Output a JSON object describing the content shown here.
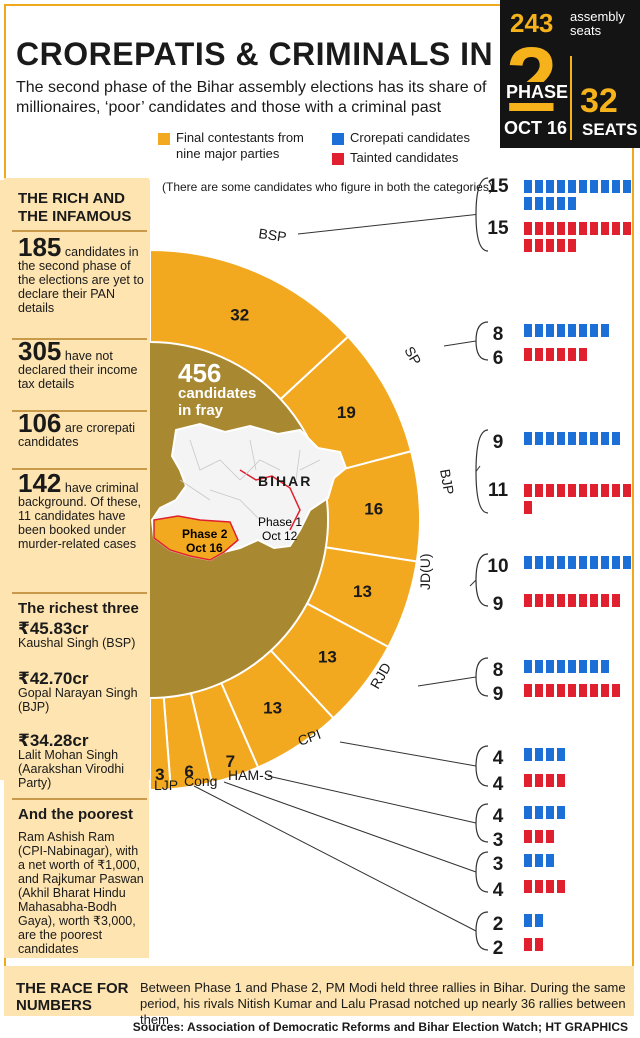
{
  "title": "CROREPATIS & CRIMINALS IN FRAY",
  "intro": "The second phase of the Bihar assembly elections has its share of millionaires, ‘poor’ candidates and those with a criminal past",
  "phase_box": {
    "total_seats": "243",
    "total_seats_label": "assembly seats",
    "phase_number": "2",
    "phase_word": "PHASE",
    "phase_date": "OCT 16",
    "phase_seats": "32",
    "phase_seats_label": "SEATS"
  },
  "legend": {
    "contestants": "Final contestants from nine major parties",
    "crorepati": "Crorepati candidates",
    "tainted": "Tainted candidates"
  },
  "note": "(There are some candidates who figure in both the categories)",
  "colors": {
    "orange": "#f2a81f",
    "olive": "#a88830",
    "blue": "#1b6fd6",
    "red": "#e0202e",
    "sidebar": "#fde4b0"
  },
  "center": {
    "total": "456",
    "total_label_1": "candidates",
    "total_label_2": "in fray",
    "map_label": "BIHAR",
    "phase2_label_1": "Phase 2",
    "phase2_label_2": "Oct 16",
    "phase1_label_1": "Phase 1",
    "phase1_label_2": "Oct 12"
  },
  "chart_data": {
    "type": "bar",
    "categories": [
      "BSP",
      "SP",
      "BJP",
      "JD(U)",
      "RJD",
      "CPI",
      "HAM-S",
      "Cong",
      "LJP"
    ],
    "series": [
      {
        "name": "Final contestants from nine major parties",
        "values": [
          32,
          19,
          16,
          13,
          13,
          13,
          7,
          6,
          3
        ]
      },
      {
        "name": "Crorepati candidates",
        "values": [
          15,
          8,
          9,
          10,
          8,
          4,
          4,
          3,
          2
        ]
      },
      {
        "name": "Tainted candidates",
        "values": [
          15,
          6,
          11,
          9,
          9,
          4,
          3,
          4,
          2
        ]
      }
    ]
  },
  "sidebar": {
    "heading": "THE RICH AND THE INFAMOUS",
    "stats": [
      {
        "num": "185",
        "text": "candidates in the second phase of the elections are yet to declare their PAN details"
      },
      {
        "num": "305",
        "text": "have not declared their income tax details"
      },
      {
        "num": "106",
        "text": "are crorepati candidates"
      },
      {
        "num": "142",
        "text": "have criminal background. Of these, 11 candidates have been booked under murder-related cases"
      }
    ],
    "richest_heading": "The richest three",
    "richest": [
      {
        "amount": "₹45.83cr",
        "name": "Kaushal Singh (BSP)"
      },
      {
        "amount": "₹42.70cr",
        "name": "Gopal Narayan Singh (BJP)"
      },
      {
        "amount": "₹34.28cr",
        "name": "Lalit Mohan Singh (Aarakshan Virodhi Party)"
      }
    ],
    "poorest_heading": "And the poorest",
    "poorest_text": "Ram Ashish Ram (CPI-Nabinagar), with a net worth of ₹1,000, and Rajkumar Paswan (Akhil Bharat Hindu Mahasabha-Bodh Gaya), worth ₹3,000, are the poorest candidates"
  },
  "race": {
    "heading": "THE RACE FOR NUMBERS",
    "text": "Between Phase 1 and Phase 2, PM Modi held three rallies in Bihar. During the same period, his rivals Nitish Kumar and Lalu Prasad notched up nearly 36 rallies between them"
  },
  "sources": "Sources: Association of Democratic Reforms and Bihar Election Watch; HT GRAPHICS"
}
